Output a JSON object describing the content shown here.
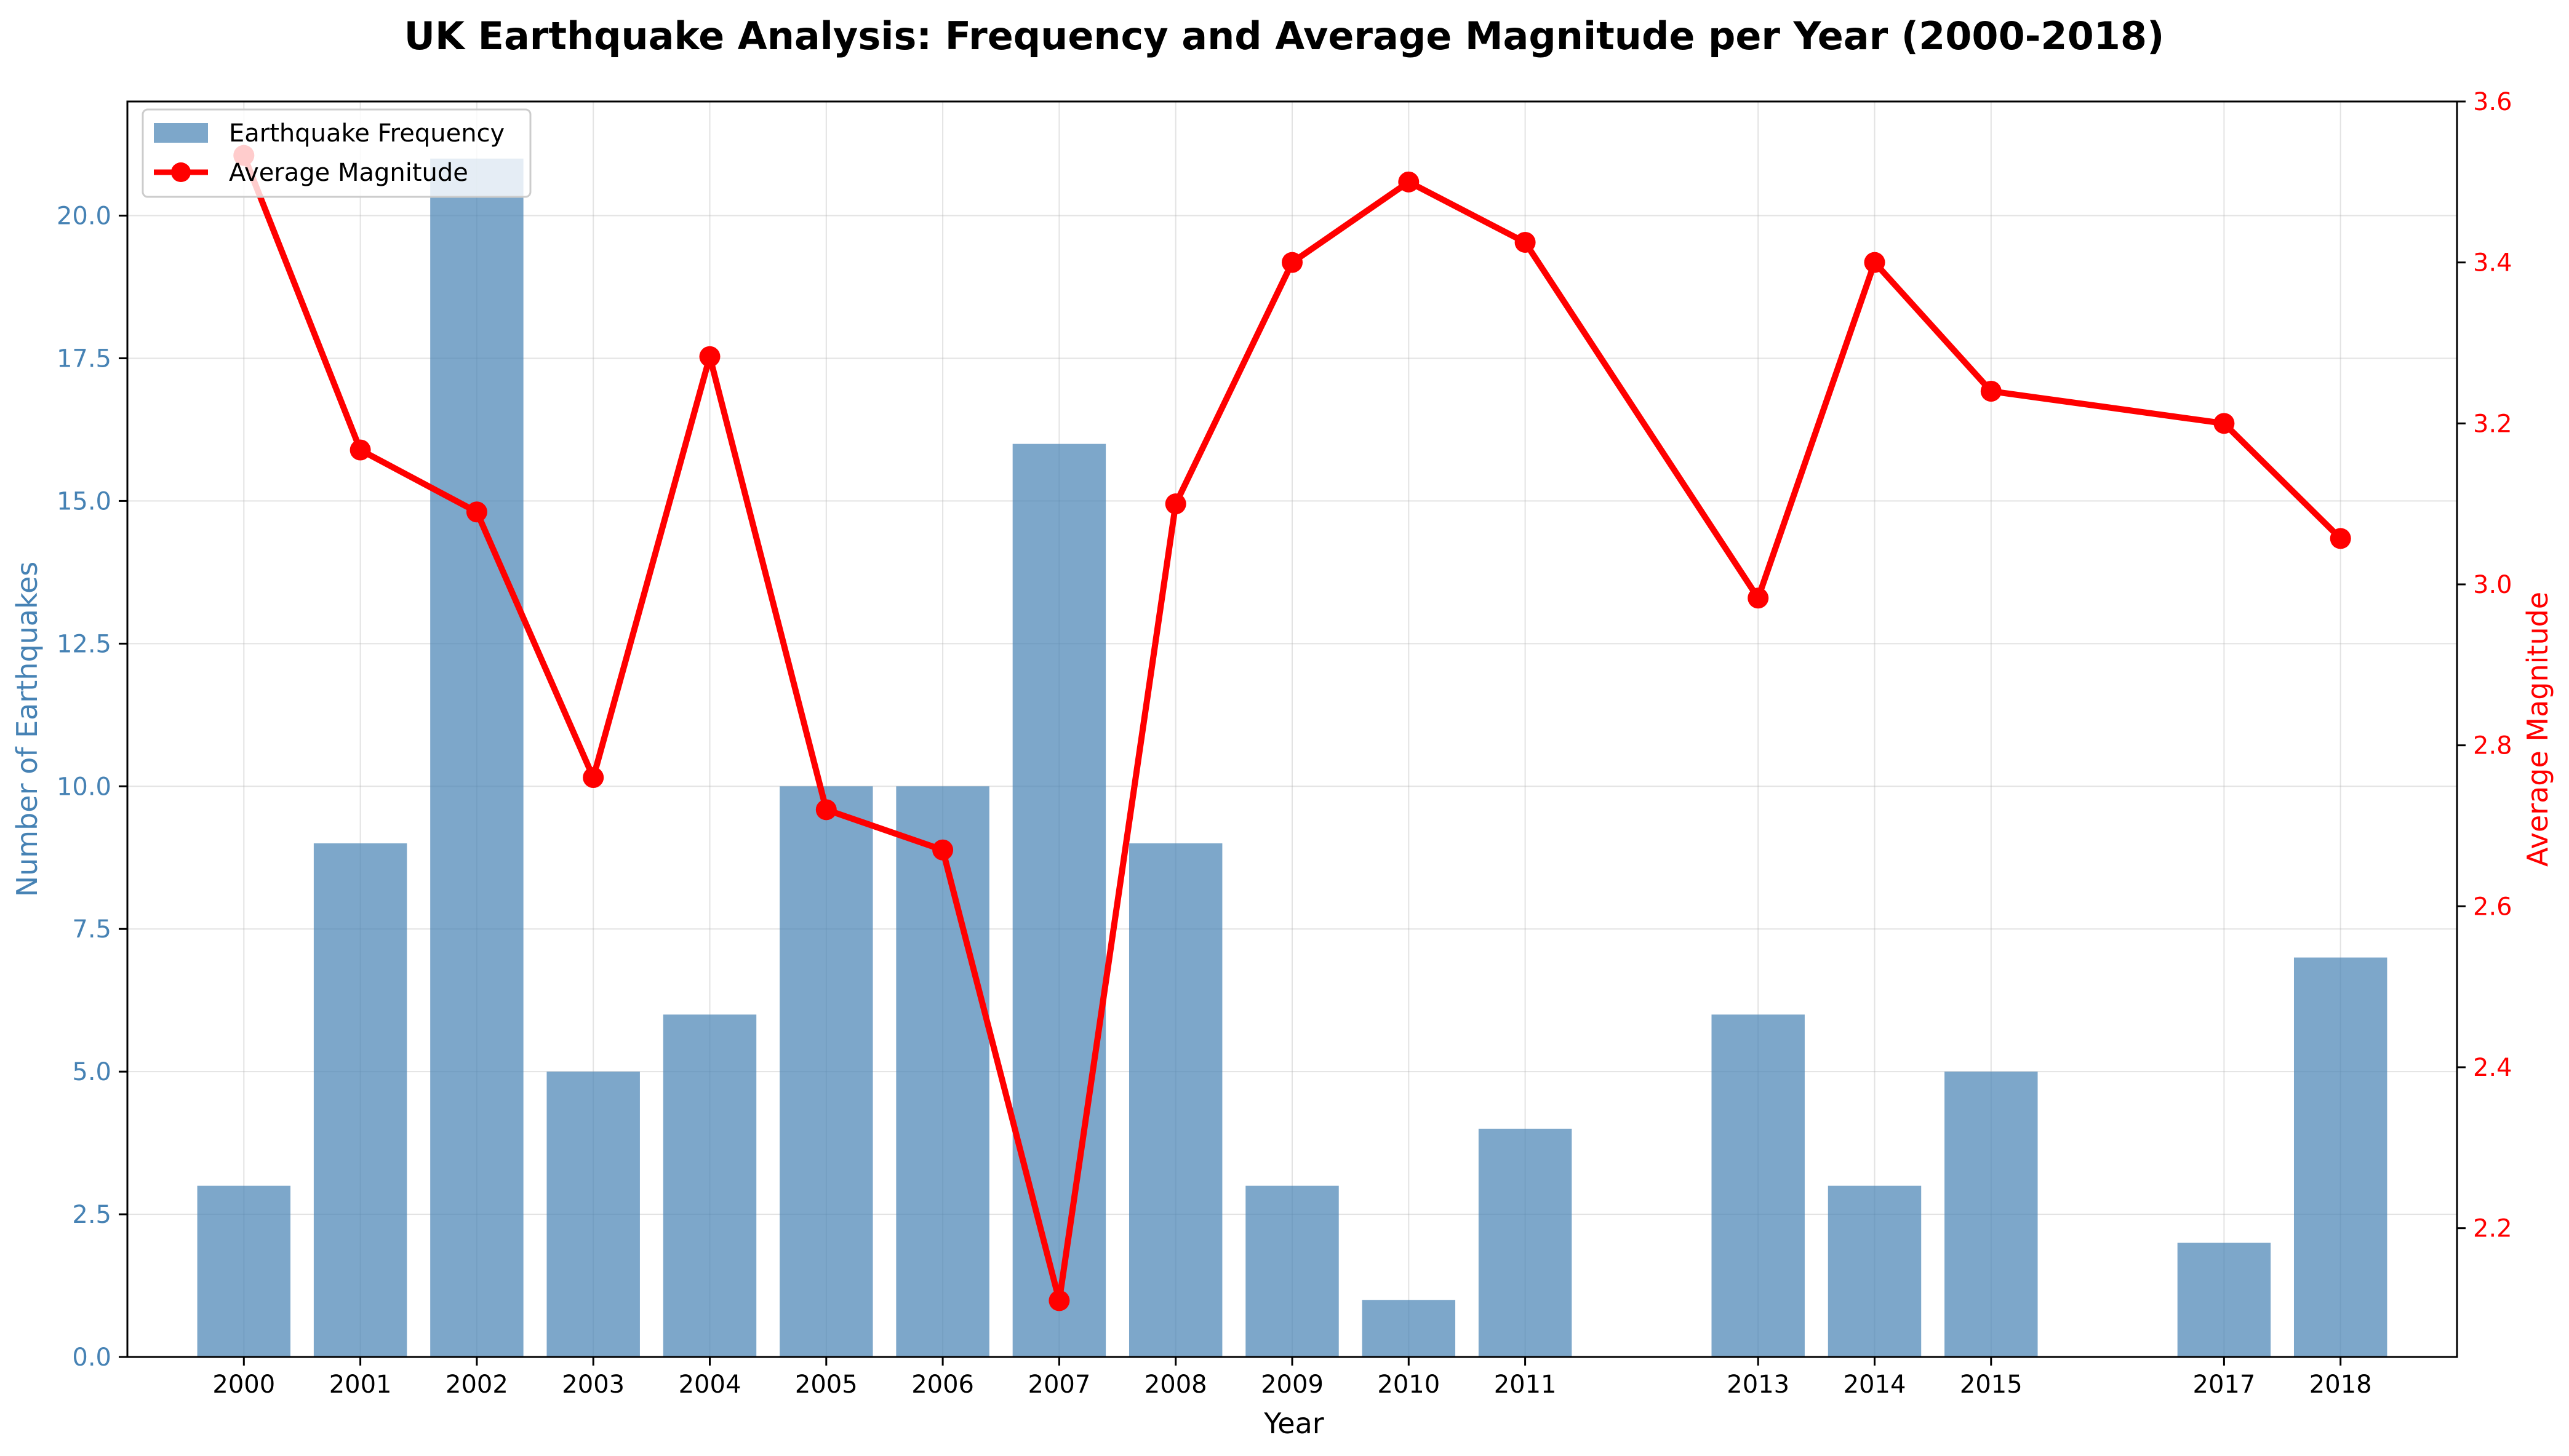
{
  "chart_data": {
    "type": "bar+line",
    "title": "UK Earthquake Analysis: Frequency and Average Magnitude per Year (2000-2018)",
    "xlabel": "Year",
    "ylabel_left": "Number of Earthquakes",
    "ylabel_right": "Average Magnitude",
    "years": [
      2000,
      2001,
      2002,
      2003,
      2004,
      2005,
      2006,
      2007,
      2008,
      2009,
      2010,
      2011,
      2013,
      2014,
      2015,
      2017,
      2018
    ],
    "year_tick_labels": [
      "2000",
      "2001",
      "2002",
      "2003",
      "2004",
      "2005",
      "2006",
      "2007",
      "2008",
      "2009",
      "2010",
      "2011",
      "2013",
      "2014",
      "2015",
      "2017",
      "2018"
    ],
    "series": [
      {
        "name": "Earthquake Frequency",
        "kind": "bar",
        "axis": "left",
        "color": "#4682b4",
        "values": [
          3,
          9,
          21,
          5,
          6,
          10,
          10,
          16,
          9,
          3,
          1,
          4,
          6,
          3,
          5,
          2,
          7
        ]
      },
      {
        "name": "Average Magnitude",
        "kind": "line",
        "axis": "right",
        "color": "#ff0000",
        "values": [
          3.533,
          3.167,
          3.09,
          2.76,
          3.283,
          2.72,
          2.67,
          2.11,
          3.1,
          3.4,
          3.5,
          3.425,
          2.983,
          3.4,
          3.24,
          3.2,
          3.057
        ]
      }
    ],
    "left_axis": {
      "range": [
        0,
        22
      ],
      "ticks": [
        0,
        2.5,
        5,
        7.5,
        10,
        12.5,
        15,
        17.5,
        20
      ],
      "tick_labels": [
        "0.0",
        "2.5",
        "5.0",
        "7.5",
        "10.0",
        "12.5",
        "15.0",
        "17.5",
        "20.0"
      ],
      "color": "#4682b4"
    },
    "right_axis": {
      "range": [
        2.04,
        3.6
      ],
      "ticks": [
        2.2,
        2.4,
        2.6,
        2.8,
        3.0,
        3.2,
        3.4,
        3.6
      ],
      "tick_labels": [
        "2.2",
        "2.4",
        "2.6",
        "2.8",
        "3.0",
        "3.2",
        "3.4",
        "3.6"
      ],
      "color": "#ff0000"
    },
    "x_range": [
      1999.0,
      2019.0
    ],
    "grid": true,
    "legend_position": "top-left"
  }
}
